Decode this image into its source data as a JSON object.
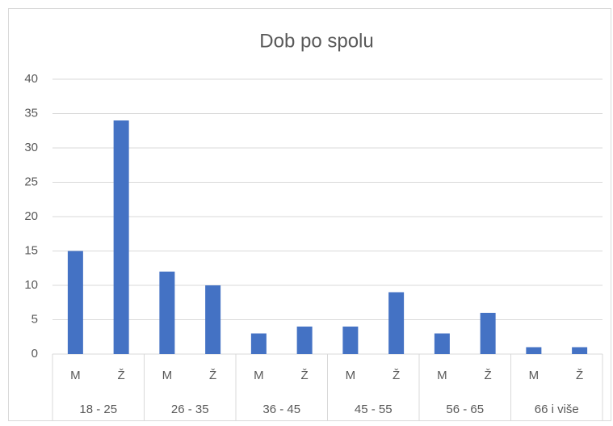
{
  "chart_data": {
    "type": "bar",
    "title": "Dob po spolu",
    "categories": [
      "M",
      "Ž",
      "M",
      "Ž",
      "M",
      "Ž",
      "M",
      "Ž",
      "M",
      "Ž",
      "M",
      "Ž"
    ],
    "groups": [
      "18 - 25",
      "26 - 35",
      "36 - 45",
      "45 - 55",
      "56 - 65",
      "66 i više"
    ],
    "values": [
      15,
      34,
      12,
      10,
      3,
      4,
      4,
      9,
      3,
      6,
      1,
      1
    ],
    "color": "#4472c4",
    "ylim": [
      0,
      40
    ],
    "yticks": [
      0,
      5,
      10,
      15,
      20,
      25,
      30,
      35,
      40
    ],
    "grid": true
  }
}
